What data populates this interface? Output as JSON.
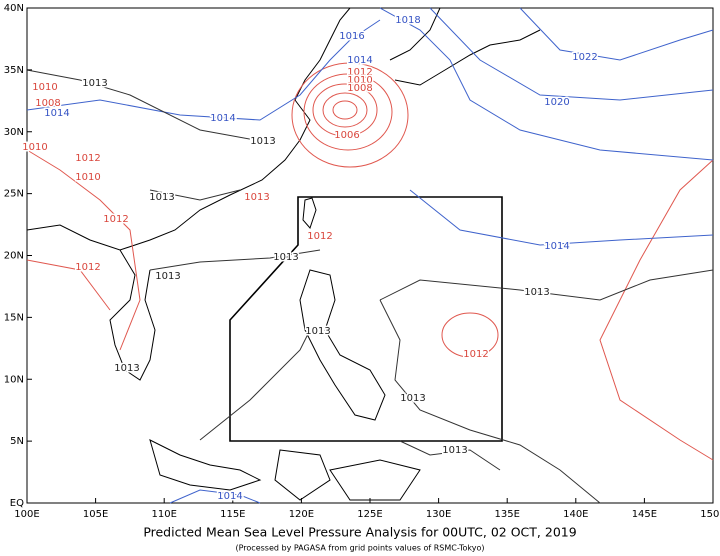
{
  "map": {
    "lat_labels": [
      "40N",
      "35N",
      "30N",
      "25N",
      "20N",
      "15N",
      "10N",
      "5N",
      "EQ"
    ],
    "lon_labels": [
      "100E",
      "105E",
      "110E",
      "115E",
      "120E",
      "125E",
      "130E",
      "135E",
      "140E",
      "145E",
      "150E"
    ],
    "contour_labels": [
      {
        "text": "1018",
        "color": "#3553c4"
      },
      {
        "text": "1016",
        "color": "#3553c4"
      },
      {
        "text": "1014",
        "color": "#3553c4"
      },
      {
        "text": "1012",
        "color": "#d9463c"
      },
      {
        "text": "1010",
        "color": "#d9463c"
      },
      {
        "text": "1008",
        "color": "#d9463c"
      },
      {
        "text": "1006",
        "color": "#d9463c"
      },
      {
        "text": "1014",
        "color": "#3553c4"
      },
      {
        "text": "1013",
        "color": "#222222"
      },
      {
        "text": "1022",
        "color": "#3553c4"
      },
      {
        "text": "1020",
        "color": "#3553c4"
      },
      {
        "text": "1014",
        "color": "#3553c4"
      },
      {
        "text": "1013",
        "color": "#222222"
      },
      {
        "text": "1014",
        "color": "#3553c4"
      },
      {
        "text": "1010",
        "color": "#d9463c"
      },
      {
        "text": "1008",
        "color": "#d9463c"
      },
      {
        "text": "1010",
        "color": "#d9463c"
      },
      {
        "text": "1012",
        "color": "#d9463c"
      },
      {
        "text": "1010",
        "color": "#d9463c"
      },
      {
        "text": "1013",
        "color": "#222222"
      },
      {
        "text": "1012",
        "color": "#d9463c"
      },
      {
        "text": "1012",
        "color": "#d9463c"
      },
      {
        "text": "1013",
        "color": "#d9463c"
      },
      {
        "text": "1012",
        "color": "#d9463c"
      },
      {
        "text": "1013",
        "color": "#222222"
      },
      {
        "text": "1013",
        "color": "#222222"
      },
      {
        "text": "1013",
        "color": "#222222"
      },
      {
        "text": "1012",
        "color": "#d9463c"
      },
      {
        "text": "1013",
        "color": "#222222"
      },
      {
        "text": "1013",
        "color": "#222222"
      },
      {
        "text": "1013",
        "color": "#222222"
      },
      {
        "text": "1013",
        "color": "#222222"
      },
      {
        "text": "1014",
        "color": "#3553c4"
      }
    ],
    "title": "Predicted Mean Sea Level Pressure Analysis for 00UTC, 02 OCT, 2019",
    "subtitle": "(Processed by PAGASA from grid points values of RSMC-Tokyo)"
  }
}
